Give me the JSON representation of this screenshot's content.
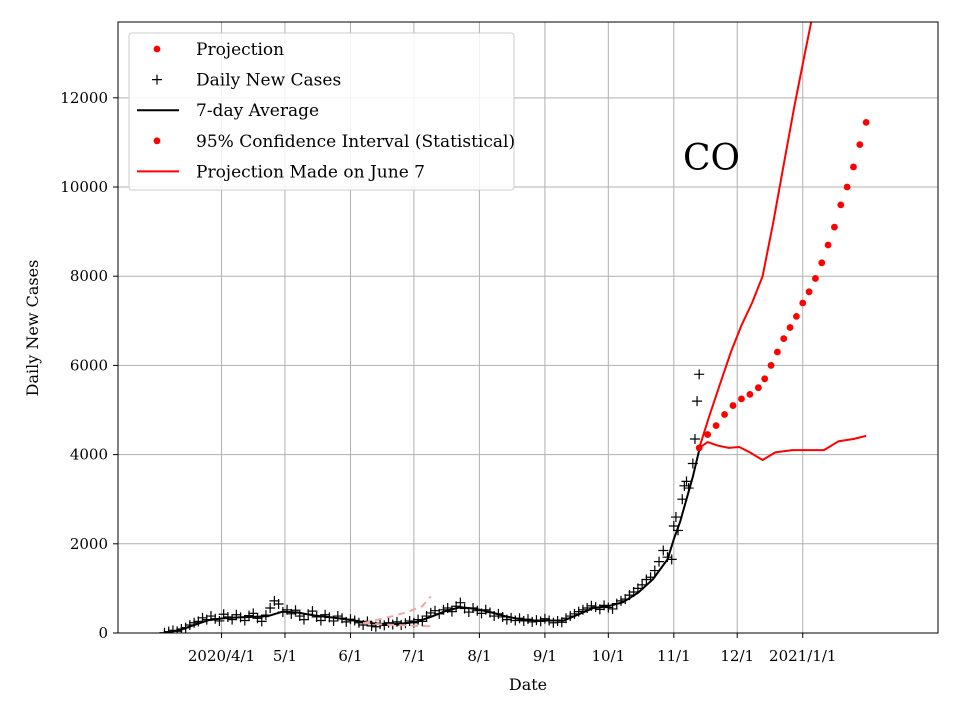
{
  "chart_data": {
    "type": "line",
    "xlabel": "Date",
    "ylabel": "Daily New Cases",
    "annotation": "CO",
    "x_ticks": [
      {
        "label": "2020/4/1",
        "date": "2020-04-01"
      },
      {
        "label": "5/1",
        "date": "2020-05-01"
      },
      {
        "label": "6/1",
        "date": "2020-06-01"
      },
      {
        "label": "7/1",
        "date": "2020-07-01"
      },
      {
        "label": "8/1",
        "date": "2020-08-01"
      },
      {
        "label": "9/1",
        "date": "2020-09-01"
      },
      {
        "label": "10/1",
        "date": "2020-10-01"
      },
      {
        "label": "11/1",
        "date": "2020-11-01"
      },
      {
        "label": "12/1",
        "date": "2020-12-01"
      },
      {
        "label": "2021/1/1",
        "date": "2021-01-01"
      }
    ],
    "xlim": [
      "2020-02-12",
      "2021-03-06"
    ],
    "ylim": [
      0,
      13700
    ],
    "y_ticks": [
      0,
      2000,
      4000,
      6000,
      8000,
      10000,
      12000
    ],
    "grid": true,
    "legend_position": "top-left",
    "legend": [
      {
        "label": "Projection",
        "marker": "dot",
        "color": "#ff0000"
      },
      {
        "label": "Daily New Cases",
        "marker": "plus",
        "color": "#000000"
      },
      {
        "label": "7-day Average",
        "marker": "line",
        "color": "#000000"
      },
      {
        "label": "95% Confidence Interval (Statistical)",
        "marker": "dot",
        "color": "#ff0000"
      },
      {
        "label": "Projection Made on June 7",
        "marker": "line",
        "color": "#ff0000"
      }
    ],
    "series": [
      {
        "name": "Daily New Cases",
        "kind": "scatter-plus",
        "color": "#000000",
        "points": [
          [
            "2020-03-05",
            5
          ],
          [
            "2020-03-07",
            30
          ],
          [
            "2020-03-09",
            60
          ],
          [
            "2020-03-11",
            40
          ],
          [
            "2020-03-13",
            90
          ],
          [
            "2020-03-15",
            120
          ],
          [
            "2020-03-17",
            180
          ],
          [
            "2020-03-19",
            230
          ],
          [
            "2020-03-21",
            260
          ],
          [
            "2020-03-23",
            340
          ],
          [
            "2020-03-25",
            300
          ],
          [
            "2020-03-27",
            380
          ],
          [
            "2020-03-29",
            320
          ],
          [
            "2020-03-31",
            270
          ],
          [
            "2020-04-02",
            420
          ],
          [
            "2020-04-04",
            360
          ],
          [
            "2020-04-06",
            300
          ],
          [
            "2020-04-08",
            410
          ],
          [
            "2020-04-10",
            350
          ],
          [
            "2020-04-12",
            280
          ],
          [
            "2020-04-14",
            390
          ],
          [
            "2020-04-16",
            440
          ],
          [
            "2020-04-18",
            330
          ],
          [
            "2020-04-20",
            260
          ],
          [
            "2020-04-22",
            400
          ],
          [
            "2020-04-24",
            560
          ],
          [
            "2020-04-26",
            720
          ],
          [
            "2020-04-28",
            650
          ],
          [
            "2020-04-30",
            470
          ],
          [
            "2020-05-02",
            520
          ],
          [
            "2020-05-04",
            430
          ],
          [
            "2020-05-06",
            510
          ],
          [
            "2020-05-08",
            380
          ],
          [
            "2020-05-10",
            300
          ],
          [
            "2020-05-12",
            420
          ],
          [
            "2020-05-14",
            490
          ],
          [
            "2020-05-16",
            360
          ],
          [
            "2020-05-18",
            280
          ],
          [
            "2020-05-20",
            410
          ],
          [
            "2020-05-22",
            350
          ],
          [
            "2020-05-24",
            270
          ],
          [
            "2020-05-26",
            380
          ],
          [
            "2020-05-28",
            330
          ],
          [
            "2020-05-30",
            250
          ],
          [
            "2020-06-01",
            310
          ],
          [
            "2020-06-03",
            280
          ],
          [
            "2020-06-05",
            230
          ],
          [
            "2020-06-07",
            180
          ],
          [
            "2020-06-09",
            260
          ],
          [
            "2020-06-11",
            160
          ],
          [
            "2020-06-13",
            140
          ],
          [
            "2020-06-15",
            200
          ],
          [
            "2020-06-17",
            170
          ],
          [
            "2020-06-19",
            230
          ],
          [
            "2020-06-21",
            190
          ],
          [
            "2020-06-23",
            250
          ],
          [
            "2020-06-25",
            180
          ],
          [
            "2020-06-27",
            220
          ],
          [
            "2020-06-29",
            270
          ],
          [
            "2020-07-01",
            230
          ],
          [
            "2020-07-03",
            300
          ],
          [
            "2020-07-05",
            260
          ],
          [
            "2020-07-07",
            380
          ],
          [
            "2020-07-09",
            450
          ],
          [
            "2020-07-11",
            500
          ],
          [
            "2020-07-13",
            430
          ],
          [
            "2020-07-15",
            520
          ],
          [
            "2020-07-17",
            560
          ],
          [
            "2020-07-19",
            480
          ],
          [
            "2020-07-21",
            600
          ],
          [
            "2020-07-23",
            680
          ],
          [
            "2020-07-25",
            550
          ],
          [
            "2020-07-27",
            470
          ],
          [
            "2020-07-29",
            560
          ],
          [
            "2020-07-31",
            500
          ],
          [
            "2020-08-02",
            440
          ],
          [
            "2020-08-04",
            520
          ],
          [
            "2020-08-06",
            460
          ],
          [
            "2020-08-08",
            380
          ],
          [
            "2020-08-10",
            430
          ],
          [
            "2020-08-12",
            360
          ],
          [
            "2020-08-14",
            300
          ],
          [
            "2020-08-16",
            340
          ],
          [
            "2020-08-18",
            280
          ],
          [
            "2020-08-20",
            330
          ],
          [
            "2020-08-22",
            270
          ],
          [
            "2020-08-24",
            310
          ],
          [
            "2020-08-26",
            250
          ],
          [
            "2020-08-28",
            290
          ],
          [
            "2020-08-30",
            260
          ],
          [
            "2020-09-01",
            320
          ],
          [
            "2020-09-03",
            280
          ],
          [
            "2020-09-05",
            230
          ],
          [
            "2020-09-07",
            270
          ],
          [
            "2020-09-09",
            240
          ],
          [
            "2020-09-11",
            330
          ],
          [
            "2020-09-13",
            380
          ],
          [
            "2020-09-15",
            430
          ],
          [
            "2020-09-17",
            480
          ],
          [
            "2020-09-19",
            520
          ],
          [
            "2020-09-21",
            560
          ],
          [
            "2020-09-23",
            610
          ],
          [
            "2020-09-25",
            580
          ],
          [
            "2020-09-27",
            530
          ],
          [
            "2020-09-29",
            620
          ],
          [
            "2020-10-01",
            570
          ],
          [
            "2020-10-03",
            540
          ],
          [
            "2020-10-05",
            660
          ],
          [
            "2020-10-07",
            720
          ],
          [
            "2020-10-09",
            760
          ],
          [
            "2020-10-11",
            850
          ],
          [
            "2020-10-13",
            920
          ],
          [
            "2020-10-15",
            1000
          ],
          [
            "2020-10-17",
            1080
          ],
          [
            "2020-10-19",
            1200
          ],
          [
            "2020-10-21",
            1250
          ],
          [
            "2020-10-23",
            1400
          ],
          [
            "2020-10-25",
            1600
          ],
          [
            "2020-10-27",
            1850
          ],
          [
            "2020-10-29",
            1700
          ],
          [
            "2020-10-31",
            1650
          ],
          [
            "2020-11-01",
            2400
          ],
          [
            "2020-11-02",
            2600
          ],
          [
            "2020-11-03",
            2300
          ],
          [
            "2020-11-05",
            3000
          ],
          [
            "2020-11-06",
            3300
          ],
          [
            "2020-11-07",
            3400
          ],
          [
            "2020-11-08",
            3250
          ],
          [
            "2020-11-10",
            3800
          ],
          [
            "2020-11-11",
            4350
          ],
          [
            "2020-11-12",
            5200
          ],
          [
            "2020-11-13",
            5800
          ]
        ]
      },
      {
        "name": "7-day Average",
        "kind": "line",
        "color": "#000000",
        "points": [
          [
            "2020-03-05",
            10
          ],
          [
            "2020-03-12",
            60
          ],
          [
            "2020-03-19",
            180
          ],
          [
            "2020-03-26",
            290
          ],
          [
            "2020-04-02",
            330
          ],
          [
            "2020-04-09",
            350
          ],
          [
            "2020-04-16",
            360
          ],
          [
            "2020-04-23",
            380
          ],
          [
            "2020-04-30",
            480
          ],
          [
            "2020-05-07",
            460
          ],
          [
            "2020-05-14",
            400
          ],
          [
            "2020-05-21",
            360
          ],
          [
            "2020-05-28",
            320
          ],
          [
            "2020-06-04",
            270
          ],
          [
            "2020-06-11",
            220
          ],
          [
            "2020-06-18",
            200
          ],
          [
            "2020-06-25",
            210
          ],
          [
            "2020-07-02",
            250
          ],
          [
            "2020-07-09",
            360
          ],
          [
            "2020-07-16",
            490
          ],
          [
            "2020-07-23",
            580
          ],
          [
            "2020-07-30",
            540
          ],
          [
            "2020-08-06",
            470
          ],
          [
            "2020-08-13",
            380
          ],
          [
            "2020-08-20",
            310
          ],
          [
            "2020-08-27",
            280
          ],
          [
            "2020-09-03",
            280
          ],
          [
            "2020-09-10",
            280
          ],
          [
            "2020-09-17",
            420
          ],
          [
            "2020-09-24",
            560
          ],
          [
            "2020-10-01",
            600
          ],
          [
            "2020-10-08",
            690
          ],
          [
            "2020-10-15",
            900
          ],
          [
            "2020-10-22",
            1200
          ],
          [
            "2020-10-29",
            1650
          ],
          [
            "2020-11-01",
            2100
          ],
          [
            "2020-11-04",
            2500
          ],
          [
            "2020-11-07",
            3000
          ],
          [
            "2020-11-10",
            3500
          ],
          [
            "2020-11-13",
            4100
          ]
        ]
      },
      {
        "name": "Projection",
        "kind": "scatter-dot",
        "color": "#ff0000",
        "points": [
          [
            "2020-11-13",
            4150
          ],
          [
            "2020-11-17",
            4450
          ],
          [
            "2020-11-21",
            4650
          ],
          [
            "2020-11-25",
            4900
          ],
          [
            "2020-11-29",
            5100
          ],
          [
            "2020-12-03",
            5250
          ],
          [
            "2020-12-07",
            5350
          ],
          [
            "2020-12-11",
            5500
          ],
          [
            "2020-12-14",
            5700
          ],
          [
            "2020-12-17",
            6000
          ],
          [
            "2020-12-20",
            6300
          ],
          [
            "2020-12-23",
            6600
          ],
          [
            "2020-12-26",
            6850
          ],
          [
            "2020-12-29",
            7100
          ],
          [
            "2021-01-01",
            7400
          ],
          [
            "2021-01-04",
            7650
          ],
          [
            "2021-01-07",
            7950
          ],
          [
            "2021-01-10",
            8300
          ],
          [
            "2021-01-13",
            8700
          ],
          [
            "2021-01-16",
            9100
          ],
          [
            "2021-01-19",
            9600
          ],
          [
            "2021-01-22",
            10000
          ],
          [
            "2021-01-25",
            10450
          ],
          [
            "2021-01-28",
            10950
          ],
          [
            "2021-01-31",
            11450
          ]
        ]
      },
      {
        "name": "95% Confidence Interval (Statistical) upper",
        "kind": "line",
        "color": "#ff0000",
        "points": [
          [
            "2020-11-13",
            4150
          ],
          [
            "2020-11-18",
            4900
          ],
          [
            "2020-11-23",
            5600
          ],
          [
            "2020-11-28",
            6300
          ],
          [
            "2020-12-03",
            6900
          ],
          [
            "2020-12-08",
            7400
          ],
          [
            "2020-12-13",
            8000
          ],
          [
            "2020-12-18",
            9200
          ],
          [
            "2020-12-23",
            10500
          ],
          [
            "2020-12-28",
            11800
          ],
          [
            "2021-01-02",
            13000
          ],
          [
            "2021-01-05",
            13700
          ]
        ]
      },
      {
        "name": "95% Confidence Interval (Statistical) lower",
        "kind": "line",
        "color": "#ff0000",
        "points": [
          [
            "2020-11-13",
            4150
          ],
          [
            "2020-11-17",
            4280
          ],
          [
            "2020-11-22",
            4200
          ],
          [
            "2020-11-27",
            4150
          ],
          [
            "2020-12-02",
            4170
          ],
          [
            "2020-12-07",
            4050
          ],
          [
            "2020-12-13",
            3880
          ],
          [
            "2020-12-19",
            4050
          ],
          [
            "2020-12-27",
            4100
          ],
          [
            "2021-01-04",
            4100
          ],
          [
            "2021-01-11",
            4100
          ],
          [
            "2021-01-18",
            4300
          ],
          [
            "2021-01-25",
            4350
          ],
          [
            "2021-01-31",
            4420
          ]
        ]
      },
      {
        "name": "Projection Made on June 7",
        "kind": "dashed",
        "color": "#f4a6a6",
        "points": [
          [
            "2020-06-07",
            220
          ],
          [
            "2020-06-14",
            300
          ],
          [
            "2020-06-21",
            380
          ],
          [
            "2020-06-28",
            470
          ],
          [
            "2020-07-05",
            600
          ],
          [
            "2020-07-09",
            820
          ]
        ]
      },
      {
        "name": "Projection Made on June 7 lower",
        "kind": "dashed",
        "color": "#f4a6a6",
        "points": [
          [
            "2020-06-07",
            220
          ],
          [
            "2020-06-17",
            190
          ],
          [
            "2020-06-27",
            170
          ],
          [
            "2020-07-09",
            150
          ]
        ]
      }
    ]
  }
}
